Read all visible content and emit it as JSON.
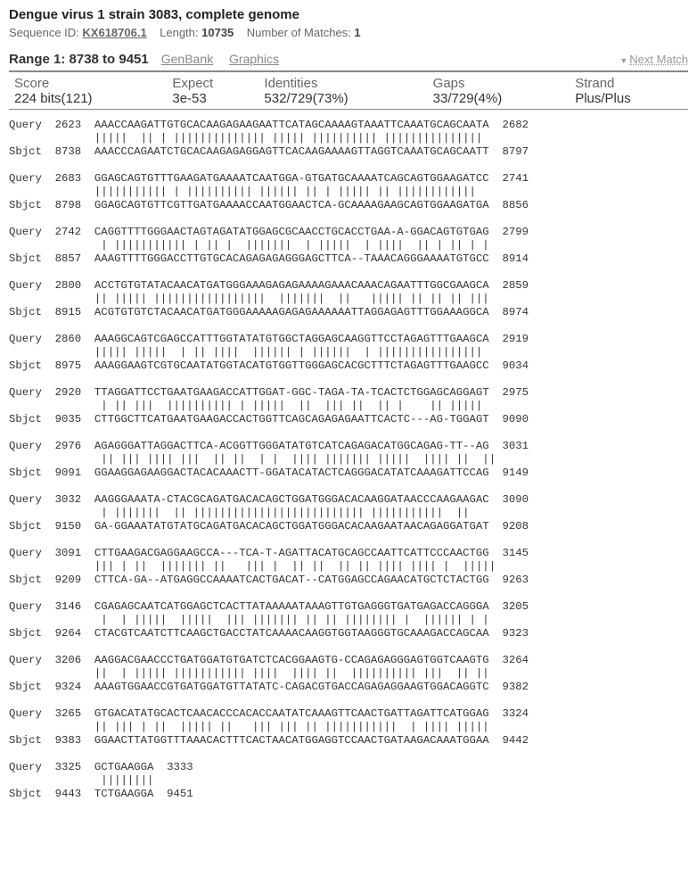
{
  "header": {
    "title": "Dengue virus 1 strain 3083, complete genome",
    "seq_id_label": "Sequence ID:",
    "seq_id": "KX618706.1",
    "length_label": "Length:",
    "length": "10735",
    "matches_label": "Number of Matches:",
    "matches": "1"
  },
  "range": {
    "title": "Range 1: 8738 to 9451",
    "genbank": "GenBank",
    "graphics": "Graphics",
    "next": "Next Match"
  },
  "stats": {
    "score_label": "Score",
    "score": "224 bits(121)",
    "expect_label": "Expect",
    "expect": "3e-53",
    "identities_label": "Identities",
    "identities": "532/729(73%)",
    "gaps_label": "Gaps",
    "gaps": "33/729(4%)",
    "strand_label": "Strand",
    "strand": "Plus/Plus"
  },
  "alignment": [
    {
      "q_label": "Query",
      "q_start": "2623",
      "q_seq": "AAACCAAGATTGTGCACAAGAGAAGAATTCATAGCAAAAGTAAATTCAAATGCAGCAATA",
      "q_end": "2682",
      "m": "|||||  || | |||||||||||||| ||||| |||||||||| ||||||||||||||| ",
      "s_label": "Sbjct",
      "s_start": "8738",
      "s_seq": "AAACCCAGAATCTGCACAAGAGAGGAGTTCACAAGAAAAGTTAGGTCAAATGCAGCAATT",
      "s_end": "8797"
    },
    {
      "q_label": "Query",
      "q_start": "2683",
      "q_seq": "GGAGCAGTGTTTGAAGATGAAAATCAATGGA-GTGATGCAAAATCAGCAGTGGAAGATCC",
      "q_end": "2741",
      "m": "||||||||||| | |||||||||| |||||| || | ||||| || ||||||||||||  ",
      "s_label": "Sbjct",
      "s_start": "8798",
      "s_seq": "GGAGCAGTGTTCGTTGATGAAAACCAATGGAACTCA-GCAAAAGAAGCAGTGGAAGATGA",
      "s_end": "8856"
    },
    {
      "q_label": "Query",
      "q_start": "2742",
      "q_seq": "CAGGTTTTGGGAACTAGTAGATATGGAGCGCAACCTGCACCTGAA-A-GGACAGTGTGAG",
      "q_end": "2799",
      "m": " | ||||||||||| | || |  |||||||  | |||||  | ||||  || | || | | ",
      "s_label": "Sbjct",
      "s_start": "8857",
      "s_seq": "AAAGTTTTGGGACCTTGTGCACAGAGAGAGGGAGCTTCA--TAAACAGGGAAAATGTGCC",
      "s_end": "8914"
    },
    {
      "q_label": "Query",
      "q_start": "2800",
      "q_seq": "ACCTGTGTATACAACATGATGGGAAAGAGAGAAAAGAAACAAACAGAATTTGGCGAAGCA",
      "q_end": "2859",
      "m": "|| ||||| |||||||||||||||||  |||||||  ||   ||||| || || || |||",
      "s_label": "Sbjct",
      "s_start": "8915",
      "s_seq": "ACGTGTGTCTACAACATGATGGGAAAAAGAGAGAAAAAATTAGGAGAGTTTGGAAAGGCA",
      "s_end": "8974"
    },
    {
      "q_label": "Query",
      "q_start": "2860",
      "q_seq": "AAAGGCAGTCGAGCCATTTGGTATATGTGGCTAGGAGCAAGGTTCCTAGAGTTTGAAGCA",
      "q_end": "2919",
      "m": "||||| |||||  | || ||||  |||||| | ||||||  | ||||||||||||||||  ",
      "s_label": "Sbjct",
      "s_start": "8975",
      "s_seq": "AAAGGAAGTCGTGCAATATGGTACATGTGGTTGGGAGCACGCTTTCTAGAGTTTGAAGCC",
      "s_end": "9034"
    },
    {
      "q_label": "Query",
      "q_start": "2920",
      "q_seq": "TTAGGATTCCTGAATGAAGACCATTGGAT-GGC-TAGA-TA-TCACTCTGGAGCAGGAGT",
      "q_end": "2975",
      "m": " | || |||  |||||||||| | |||||  ||  ||| ||  || |    || |||||",
      "s_label": "Sbjct",
      "s_start": "9035",
      "s_seq": "CTTGGCTTCATGAATGAAGACCACTGGTTCAGCAGAGAGAATTCACTC---AG-TGGAGT",
      "s_end": "9090"
    },
    {
      "q_label": "Query",
      "q_start": "2976",
      "q_seq": "AGAGGGATTAGGACTTCA-ACGGTTGGGATATGTCATCAGAGACATGGCAGAG-TT--AG",
      "q_end": "3031",
      "m": " || ||| |||| |||  || ||  | |  |||| ||||||| |||||  |||| ||  ||",
      "s_label": "Sbjct",
      "s_start": "9091",
      "s_seq": "GGAAGGAGAAGGACTACACAAACTT-GGATACATACTCAGGGACATATCAAAGATTCCAG",
      "s_end": "9149"
    },
    {
      "q_label": "Query",
      "q_start": "3032",
      "q_seq": "AAGGGAAATA-CTACGCAGATGACACAGCTGGATGGGACACAAGGATAACCCAAGAAGAC",
      "q_end": "3090",
      "m": " | |||||||  || |||||||||||||||||||||||||| |||||||||||  || ",
      "s_label": "Sbjct",
      "s_start": "9150",
      "s_seq": "GA-GGAAATATGTATGCAGATGACACAGCTGGATGGGACACAAGAATAACAGAGGATGAT",
      "s_end": "9208"
    },
    {
      "q_label": "Query",
      "q_start": "3091",
      "q_seq": "CTTGAAGACGAGGAAGCCA---TCA-T-AGATTACATGCAGCCAATTCATTCCCAACTGG",
      "q_end": "3145",
      "m": "||| | ||  ||||||| ||   ||| |  || ||  || || |||| |||| |  |||||",
      "s_label": "Sbjct",
      "s_start": "9209",
      "s_seq": "CTTCA-GA--ATGAGGCCAAAATCACTGACAT--CATGGAGCCAGAACATGCTCTACTGG",
      "s_end": "9263"
    },
    {
      "q_label": "Query",
      "q_start": "3146",
      "q_seq": "CGAGAGCAATCATGGAGCTCACTTATAAAAATAAAGTTGTGAGGGTGATGAGACCAGGGA",
      "q_end": "3205",
      "m": " |  | |||||  |||||  ||| ||||||| || || |||||||| |  |||||| | |",
      "s_label": "Sbjct",
      "s_start": "9264",
      "s_seq": "CTACGTCAATCTTCAAGCTGACCTATCAAAACAAGGTGGTAAGGGTGCAAAGACCAGCAA",
      "s_end": "9323"
    },
    {
      "q_label": "Query",
      "q_start": "3206",
      "q_seq": "AAGGACGAACCCTGATGGATGTGATCTCACGGAAGTG-CCAGAGAGGGAGTGGTCAAGTG",
      "q_end": "3264",
      "m": "||  | ||||| ||||||||||| ||||  |||| ||  |||||||||| |||  || || ",
      "s_label": "Sbjct",
      "s_start": "9324",
      "s_seq": "AAAGTGGAACCGTGATGGATGTTATATC-CAGACGTGACCAGAGAGGAAGTGGACAGGTC",
      "s_end": "9382"
    },
    {
      "q_label": "Query",
      "q_start": "3265",
      "q_seq": "GTGACATATGCACTCAACACCCACACCAATATCAAAGTTCAACTGATTAGATTCATGGAG",
      "q_end": "3324",
      "m": "|| ||| | ||  ||||| ||   ||| ||| || |||||||||||  | |||| |||||  ",
      "s_label": "Sbjct",
      "s_start": "9383",
      "s_seq": "GGAACTTATGGTTTAAACACTTTCACTAACATGGAGGTCCAACTGATAAGACAAATGGAA",
      "s_end": "9442"
    },
    {
      "q_label": "Query",
      "q_start": "3325",
      "q_seq": "GCTGAAGGA",
      "q_end": "3333",
      "m": " ||||||||",
      "s_label": "Sbjct",
      "s_start": "9443",
      "s_seq": "TCTGAAGGA",
      "s_end": "9451"
    }
  ]
}
